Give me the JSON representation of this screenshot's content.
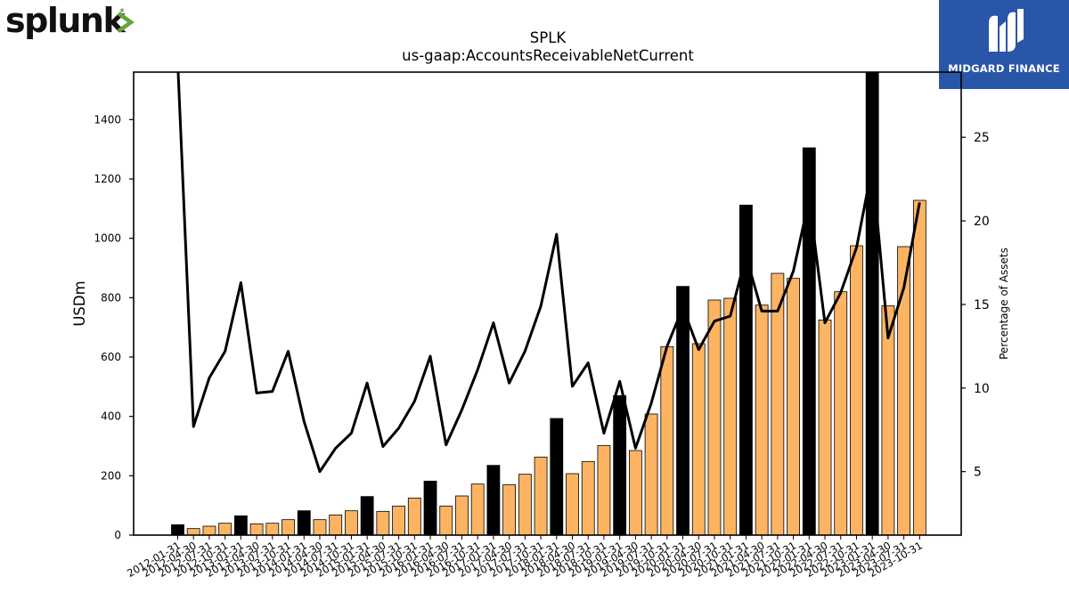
{
  "brand": {
    "left_logo_text": "splunk>",
    "right_logo_text": "MIDGARD FINANCE",
    "colors": {
      "splunk_text": "#111111",
      "splunk_chevron": "#65a637",
      "midgard_bg": "#2a56a8"
    }
  },
  "chart_data": {
    "type": "bar",
    "title": "SPLK",
    "subtitle": "us-gaap:AccountsReceivableNetCurrent",
    "ylabel": "USDm",
    "y2label": "Percentage of Assets",
    "ylim": [
      0,
      1560
    ],
    "y2lim": [
      1.2,
      28.9
    ],
    "yticks": [
      0,
      200,
      400,
      600,
      800,
      1000,
      1200,
      1400
    ],
    "y2ticks": [
      5,
      10,
      15,
      20,
      25
    ],
    "colors": {
      "quarter_bar": "#fdb462",
      "fiscal_year_end_bar": "#000000",
      "line": "#000000"
    },
    "categories": [
      "2012-01-31",
      "2012-04-30",
      "2012-07-31",
      "2012-10-31",
      "2013-01-31",
      "2013-04-30",
      "2013-07-31",
      "2013-10-31",
      "2014-01-31",
      "2014-04-30",
      "2014-07-31",
      "2014-10-31",
      "2015-01-31",
      "2015-04-30",
      "2015-07-31",
      "2015-10-31",
      "2016-01-31",
      "2016-04-30",
      "2016-07-31",
      "2016-10-31",
      "2017-01-31",
      "2017-04-30",
      "2017-07-31",
      "2017-10-31",
      "2018-01-31",
      "2018-04-30",
      "2018-07-31",
      "2018-10-31",
      "2019-01-31",
      "2019-04-30",
      "2019-07-31",
      "2019-10-31",
      "2020-01-31",
      "2020-04-30",
      "2020-07-31",
      "2020-10-31",
      "2021-01-31",
      "2021-04-30",
      "2021-07-31",
      "2021-10-31",
      "2022-01-31",
      "2022-04-30",
      "2022-07-31",
      "2022-10-31",
      "2023-01-31",
      "2023-04-30",
      "2023-07-31",
      "2023-10-31"
    ],
    "series": [
      {
        "type": "bar",
        "axis": "left",
        "values": [
          35,
          22,
          30,
          40,
          65,
          38,
          40,
          52,
          82,
          52,
          68,
          82,
          130,
          80,
          98,
          125,
          182,
          98,
          132,
          172,
          235,
          170,
          205,
          263,
          393,
          207,
          248,
          302,
          470,
          285,
          408,
          635,
          838,
          645,
          792,
          798,
          1112,
          775,
          882,
          865,
          1305,
          725,
          820,
          975,
          1560,
          773,
          972,
          1128
        ]
      },
      {
        "type": "line",
        "axis": "right",
        "values": [
          29.5,
          7.7,
          10.6,
          12.2,
          16.3,
          9.7,
          9.8,
          12.2,
          8.0,
          5.0,
          6.4,
          7.3,
          10.3,
          6.5,
          7.6,
          9.2,
          11.9,
          6.6,
          8.7,
          11.1,
          13.9,
          10.3,
          12.2,
          14.9,
          19.2,
          10.1,
          11.5,
          7.3,
          10.4,
          6.4,
          9.1,
          12.5,
          14.8,
          12.3,
          14.0,
          14.3,
          17.9,
          14.6,
          14.6,
          17.0,
          21.3,
          13.9,
          15.7,
          18.4,
          23.3,
          13.0,
          16.0,
          21.1
        ]
      }
    ]
  }
}
